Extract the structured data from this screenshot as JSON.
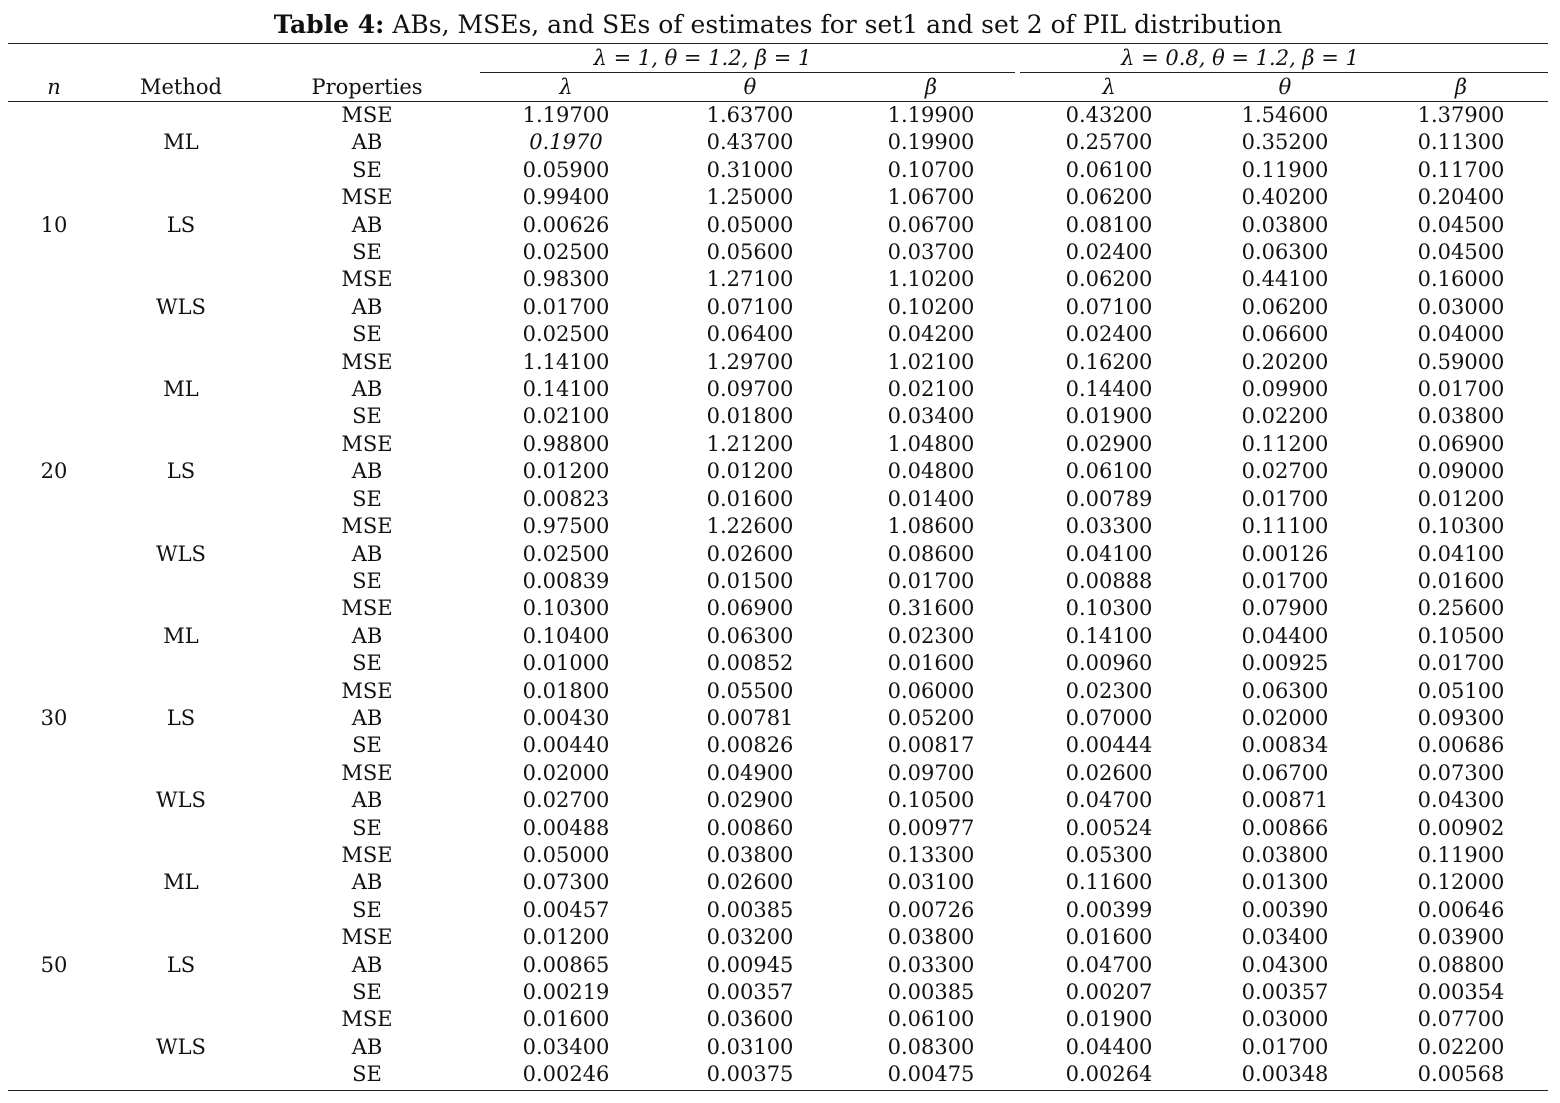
{
  "caption": {
    "label": "Table 4:",
    "text": " ABs, MSEs, and SEs of estimates for set1 and set 2 of PIL distribution"
  },
  "groups": [
    "λ = 1, θ = 1.2, β = 1",
    "λ = 0.8, θ = 1.2, β = 1"
  ],
  "headers": {
    "n": "n",
    "method": "Method",
    "properties": "Properties",
    "params": [
      "λ",
      "θ",
      "β",
      "λ",
      "θ",
      "β"
    ]
  },
  "blocks": [
    {
      "n": "10",
      "methods": [
        {
          "name": "ML",
          "rows": [
            {
              "prop": "MSE",
              "values": [
                "1.19700",
                "1.63700",
                "1.19900",
                "0.43200",
                "1.54600",
                "1.37900"
              ]
            },
            {
              "prop": "AB",
              "values": [
                "0.1970",
                "0.43700",
                "0.19900",
                "0.25700",
                "0.35200",
                "0.11300"
              ]
            },
            {
              "prop": "SE",
              "values": [
                "0.05900",
                "0.31000",
                "0.10700",
                "0.06100",
                "0.11900",
                "0.11700"
              ]
            }
          ]
        },
        {
          "name": "LS",
          "rows": [
            {
              "prop": "MSE",
              "values": [
                "0.99400",
                "1.25000",
                "1.06700",
                "0.06200",
                "0.40200",
                "0.20400"
              ]
            },
            {
              "prop": "AB",
              "values": [
                "0.00626",
                "0.05000",
                "0.06700",
                "0.08100",
                "0.03800",
                "0.04500"
              ]
            },
            {
              "prop": "SE",
              "values": [
                "0.02500",
                "0.05600",
                "0.03700",
                "0.02400",
                "0.06300",
                "0.04500"
              ]
            }
          ]
        },
        {
          "name": "WLS",
          "rows": [
            {
              "prop": "MSE",
              "values": [
                "0.98300",
                "1.27100",
                "1.10200",
                "0.06200",
                "0.44100",
                "0.16000"
              ]
            },
            {
              "prop": "AB",
              "values": [
                "0.01700",
                "0.07100",
                "0.10200",
                "0.07100",
                "0.06200",
                "0.03000"
              ]
            },
            {
              "prop": "SE",
              "values": [
                "0.02500",
                "0.06400",
                "0.04200",
                "0.02400",
                "0.06600",
                "0.04000"
              ]
            }
          ]
        }
      ]
    },
    {
      "n": "20",
      "methods": [
        {
          "name": "ML",
          "rows": [
            {
              "prop": "MSE",
              "values": [
                "1.14100",
                "1.29700",
                "1.02100",
                "0.16200",
                "0.20200",
                "0.59000"
              ]
            },
            {
              "prop": "AB",
              "values": [
                "0.14100",
                "0.09700",
                "0.02100",
                "0.14400",
                "0.09900",
                "0.01700"
              ]
            },
            {
              "prop": "SE",
              "values": [
                "0.02100",
                "0.01800",
                "0.03400",
                "0.01900",
                "0.02200",
                "0.03800"
              ]
            }
          ]
        },
        {
          "name": "LS",
          "rows": [
            {
              "prop": "MSE",
              "values": [
                "0.98800",
                "1.21200",
                "1.04800",
                "0.02900",
                "0.11200",
                "0.06900"
              ]
            },
            {
              "prop": "AB",
              "values": [
                "0.01200",
                "0.01200",
                "0.04800",
                "0.06100",
                "0.02700",
                "0.09000"
              ]
            },
            {
              "prop": "SE",
              "values": [
                "0.00823",
                "0.01600",
                "0.01400",
                "0.00789",
                "0.01700",
                "0.01200"
              ]
            }
          ]
        },
        {
          "name": "WLS",
          "rows": [
            {
              "prop": "MSE",
              "values": [
                "0.97500",
                "1.22600",
                "1.08600",
                "0.03300",
                "0.11100",
                "0.10300"
              ]
            },
            {
              "prop": "AB",
              "values": [
                "0.02500",
                "0.02600",
                "0.08600",
                "0.04100",
                "0.00126",
                "0.04100"
              ]
            },
            {
              "prop": "SE",
              "values": [
                "0.00839",
                "0.01500",
                "0.01700",
                "0.00888",
                "0.01700",
                "0.01600"
              ]
            }
          ]
        }
      ]
    },
    {
      "n": "30",
      "methods": [
        {
          "name": "ML",
          "rows": [
            {
              "prop": "MSE",
              "values": [
                "0.10300",
                "0.06900",
                "0.31600",
                "0.10300",
                "0.07900",
                "0.25600"
              ]
            },
            {
              "prop": "AB",
              "values": [
                "0.10400",
                "0.06300",
                "0.02300",
                "0.14100",
                "0.04400",
                "0.10500"
              ]
            },
            {
              "prop": "SE",
              "values": [
                "0.01000",
                "0.00852",
                "0.01600",
                "0.00960",
                "0.00925",
                "0.01700"
              ]
            }
          ]
        },
        {
          "name": "LS",
          "rows": [
            {
              "prop": "MSE",
              "values": [
                "0.01800",
                "0.05500",
                "0.06000",
                "0.02300",
                "0.06300",
                "0.05100"
              ]
            },
            {
              "prop": "AB",
              "values": [
                "0.00430",
                "0.00781",
                "0.05200",
                "0.07000",
                "0.02000",
                "0.09300"
              ]
            },
            {
              "prop": "SE",
              "values": [
                "0.00440",
                "0.00826",
                "0.00817",
                "0.00444",
                "0.00834",
                "0.00686"
              ]
            }
          ]
        },
        {
          "name": "WLS",
          "rows": [
            {
              "prop": "MSE",
              "values": [
                "0.02000",
                "0.04900",
                "0.09700",
                "0.02600",
                "0.06700",
                "0.07300"
              ]
            },
            {
              "prop": "AB",
              "values": [
                "0.02700",
                "0.02900",
                "0.10500",
                "0.04700",
                "0.00871",
                "0.04300"
              ]
            },
            {
              "prop": "SE",
              "values": [
                "0.00488",
                "0.00860",
                "0.00977",
                "0.00524",
                "0.00866",
                "0.00902"
              ]
            }
          ]
        }
      ]
    },
    {
      "n": "50",
      "methods": [
        {
          "name": "ML",
          "rows": [
            {
              "prop": "MSE",
              "values": [
                "0.05000",
                "0.03800",
                "0.13300",
                "0.05300",
                "0.03800",
                "0.11900"
              ]
            },
            {
              "prop": "AB",
              "values": [
                "0.07300",
                "0.02600",
                "0.03100",
                "0.11600",
                "0.01300",
                "0.12000"
              ]
            },
            {
              "prop": "SE",
              "values": [
                "0.00457",
                "0.00385",
                "0.00726",
                "0.00399",
                "0.00390",
                "0.00646"
              ]
            }
          ]
        },
        {
          "name": "LS",
          "rows": [
            {
              "prop": "MSE",
              "values": [
                "0.01200",
                "0.03200",
                "0.03800",
                "0.01600",
                "0.03400",
                "0.03900"
              ]
            },
            {
              "prop": "AB",
              "values": [
                "0.00865",
                "0.00945",
                "0.03300",
                "0.04700",
                "0.04300",
                "0.08800"
              ]
            },
            {
              "prop": "SE",
              "values": [
                "0.00219",
                "0.00357",
                "0.00385",
                "0.00207",
                "0.00357",
                "0.00354"
              ]
            }
          ]
        },
        {
          "name": "WLS",
          "rows": [
            {
              "prop": "MSE",
              "values": [
                "0.01600",
                "0.03600",
                "0.06100",
                "0.01900",
                "0.03000",
                "0.07700"
              ]
            },
            {
              "prop": "AB",
              "values": [
                "0.03400",
                "0.03100",
                "0.08300",
                "0.04400",
                "0.01700",
                "0.02200"
              ]
            },
            {
              "prop": "SE",
              "values": [
                "0.00246",
                "0.00375",
                "0.00475",
                "0.00264",
                "0.00348",
                "0.00568"
              ]
            }
          ]
        }
      ]
    }
  ]
}
